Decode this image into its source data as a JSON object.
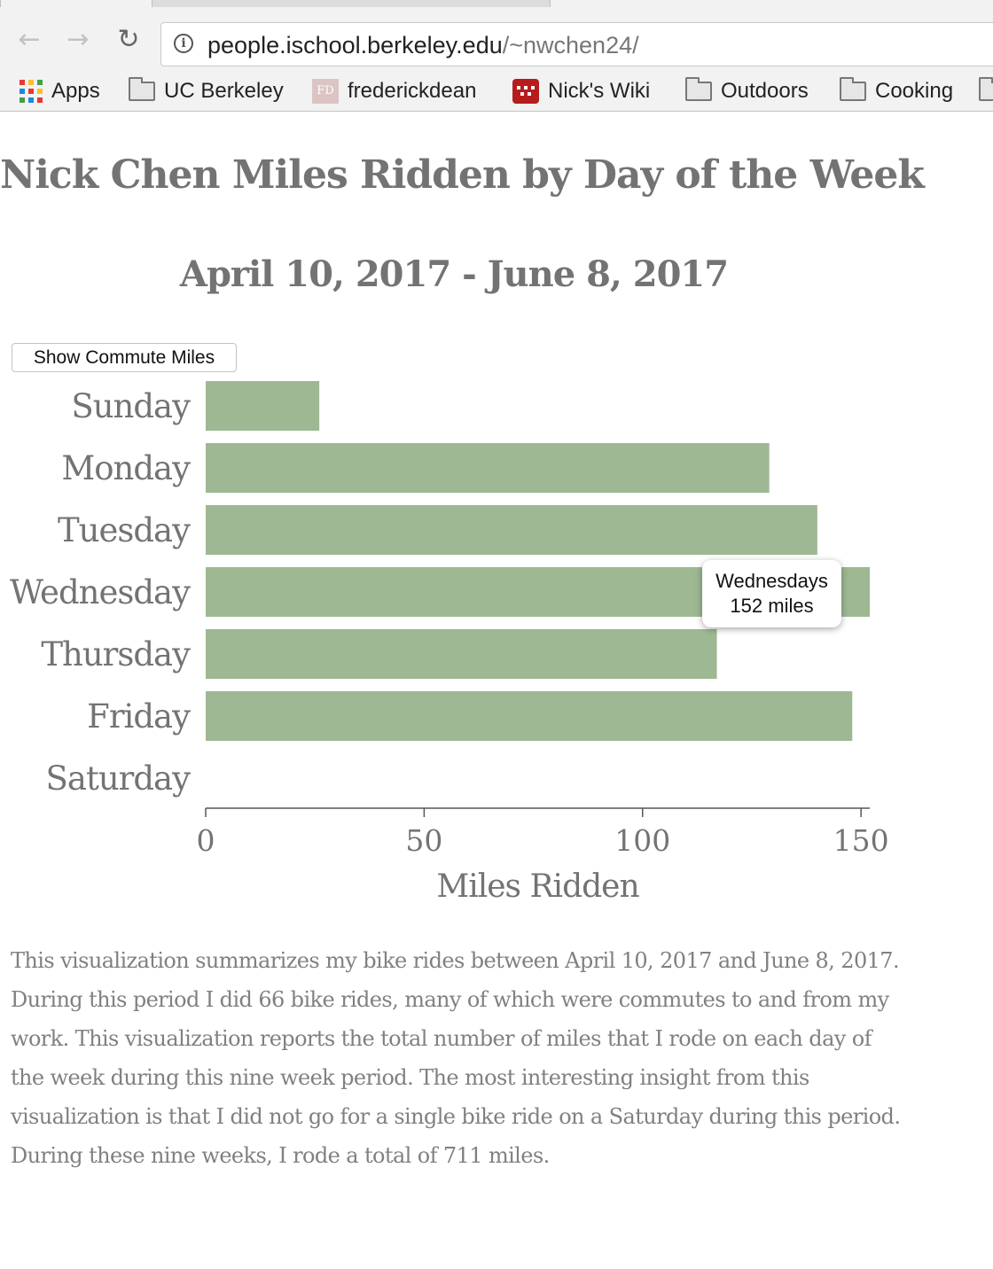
{
  "browser": {
    "url_host": "people.ischool.berkeley.edu",
    "url_path": "/~nwchen24/",
    "bookmarks": [
      {
        "label": "Apps",
        "icon": "apps-grid-icon"
      },
      {
        "label": "UC Berkeley",
        "icon": "folder-icon"
      },
      {
        "label": "frederickdean",
        "icon": "fd-favicon"
      },
      {
        "label": "Nick's Wiki",
        "icon": "wiki-favicon"
      },
      {
        "label": "Outdoors",
        "icon": "folder-icon"
      },
      {
        "label": "Cooking",
        "icon": "folder-icon"
      }
    ]
  },
  "page": {
    "title": "Nick Chen Miles Ridden by Day of the Week",
    "subtitle": "April 10, 2017 - June 8, 2017",
    "button_label": "Show Commute Miles",
    "description": "This visualization summarizes my bike rides between April 10, 2017 and June 8, 2017. During this period I did 66 bike rides, many of which were commutes to and from my work. This visualization reports the total number of miles that I rode on each day of the week during this nine week period. The most interesting insight from this visualization is that I did not go for a single bike ride on a Saturday during this period. During these nine weeks, I rode a total of 711 miles."
  },
  "tooltip": {
    "line1": "Wednesdays",
    "line2": "152 miles"
  },
  "colors": {
    "bar": "#9db893",
    "text": "#737373"
  },
  "chart_data": {
    "type": "bar",
    "orientation": "horizontal",
    "categories": [
      "Sunday",
      "Monday",
      "Tuesday",
      "Wednesday",
      "Thursday",
      "Friday",
      "Saturday"
    ],
    "values": [
      26,
      129,
      140,
      152,
      117,
      148,
      0
    ],
    "xlabel": "Miles Ridden",
    "ylabel": "",
    "xlim": [
      0,
      152
    ],
    "xticks": [
      0,
      50,
      100,
      150
    ],
    "grid": false
  }
}
